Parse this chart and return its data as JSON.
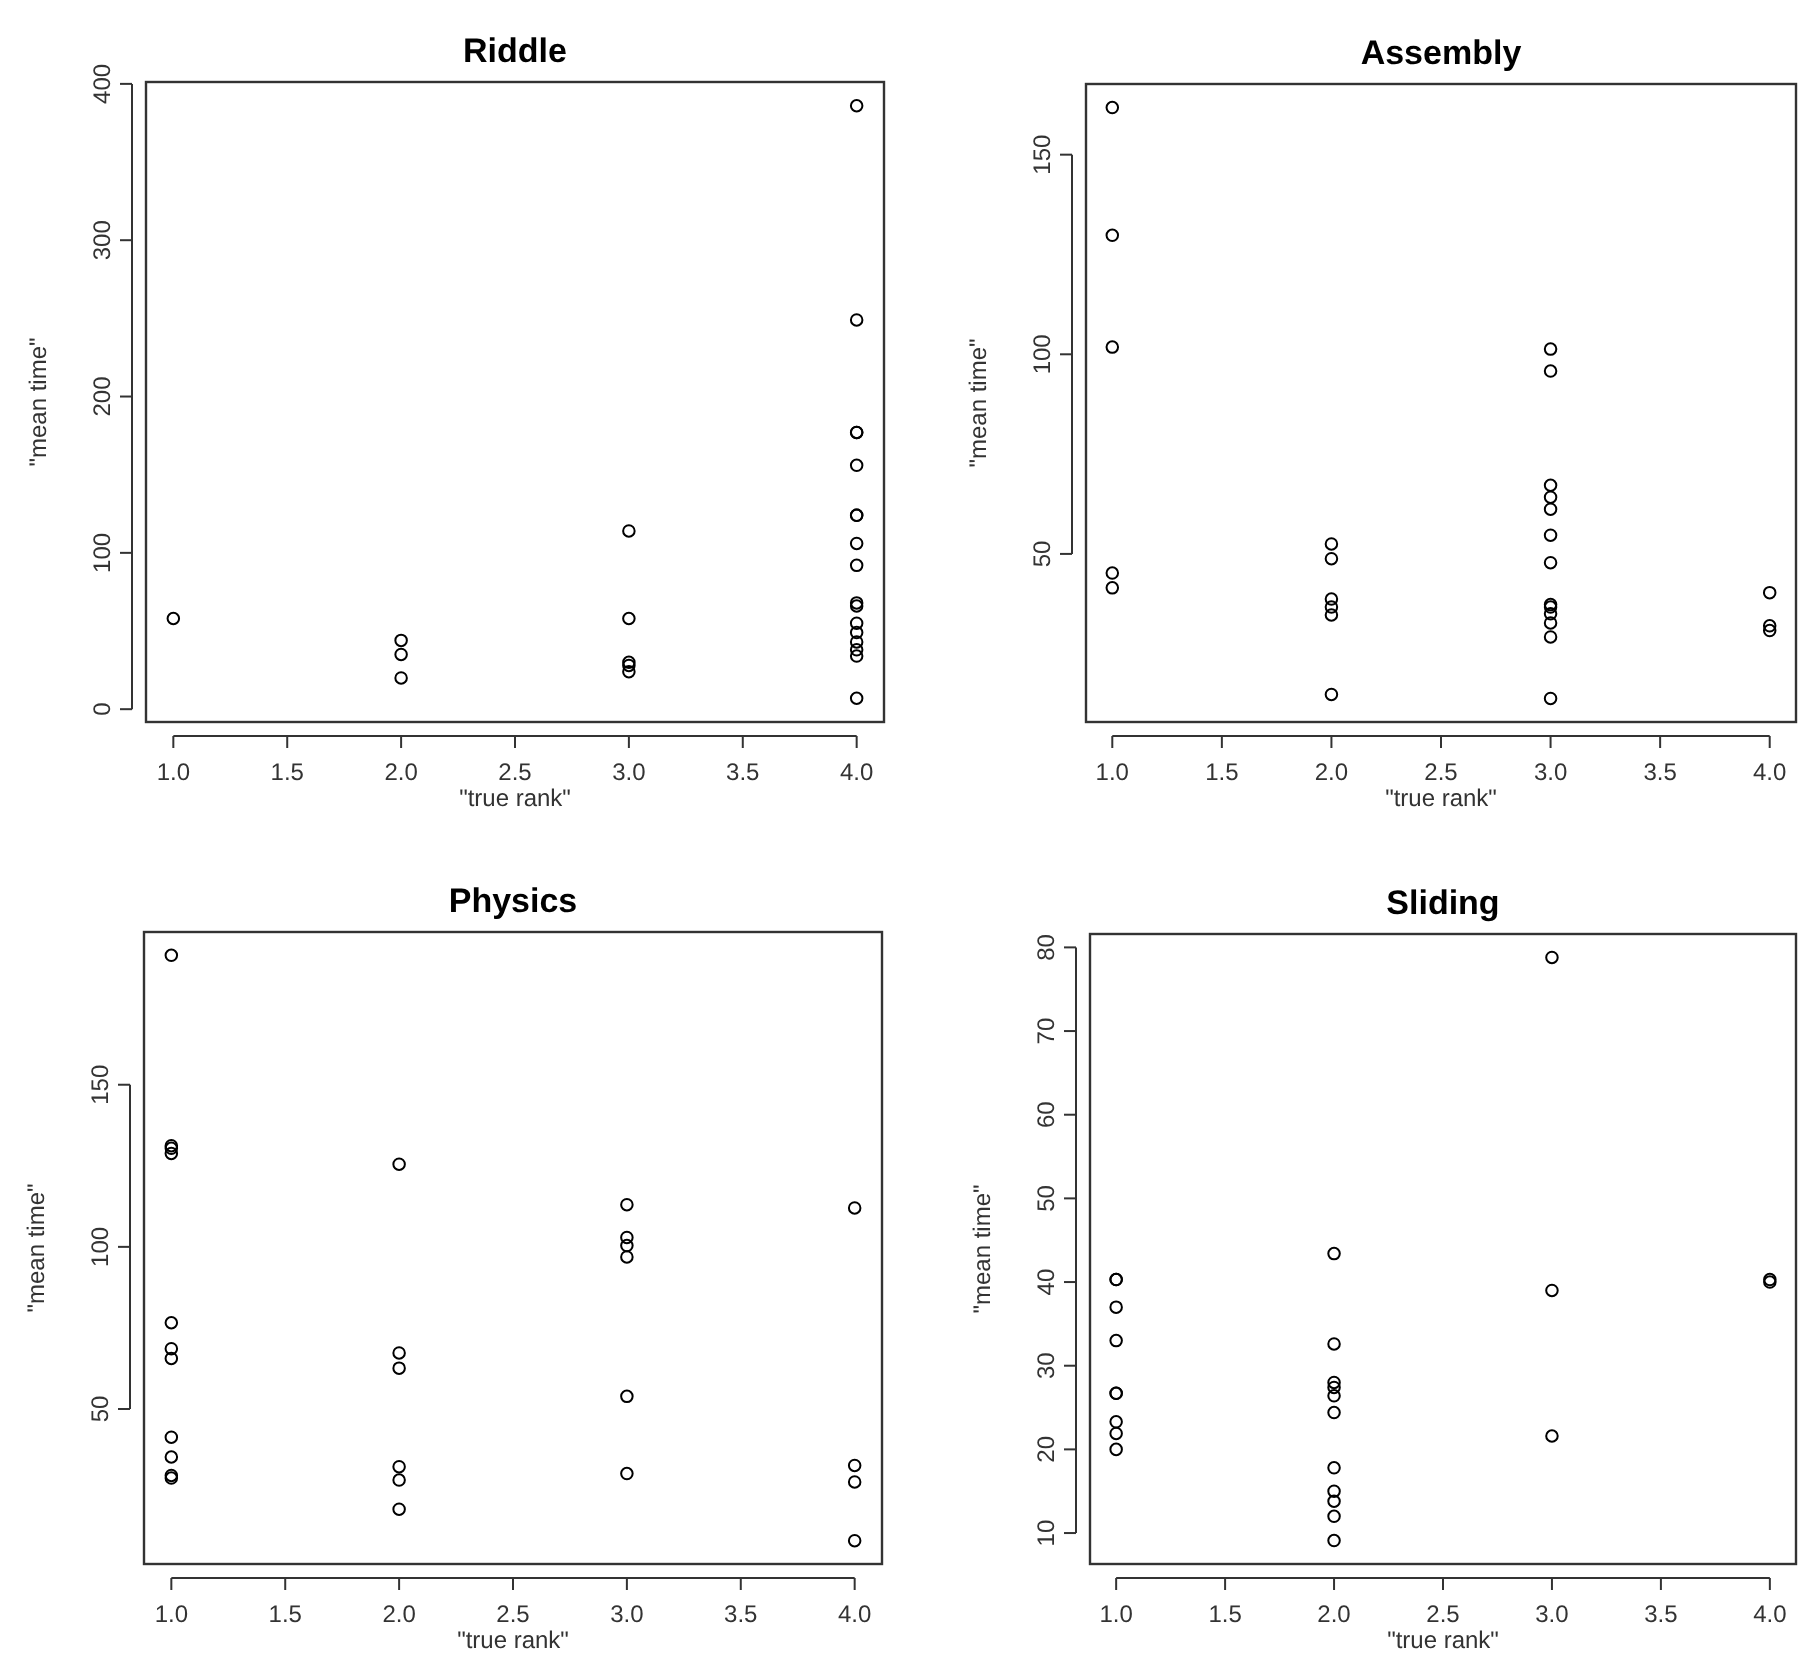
{
  "chart_data": [
    {
      "type": "scatter",
      "title": "Riddle",
      "xlabel": "\"true rank\"",
      "ylabel": "\"mean time\"",
      "marker": "circle",
      "color": "#000000",
      "grid": false,
      "x": [
        1,
        2,
        2,
        2,
        3,
        3,
        3,
        3,
        3,
        4,
        4,
        4,
        4,
        4,
        4,
        4,
        4,
        4,
        4,
        4,
        4,
        4,
        4,
        4,
        4,
        4
      ],
      "values": [
        58,
        44,
        35,
        20,
        114,
        58,
        30,
        28,
        24,
        386,
        249,
        177,
        177,
        156,
        124,
        124,
        106,
        92,
        68,
        66,
        55,
        49,
        43,
        38,
        34,
        7
      ],
      "xlim": [
        0.88,
        4.12
      ],
      "xticks": [
        {
          "value": 1,
          "label": "1.0"
        },
        {
          "value": 1.5,
          "label": "1.5"
        },
        {
          "value": 2,
          "label": "2.0"
        },
        {
          "value": 2.5,
          "label": "2.5"
        },
        {
          "value": 3,
          "label": "3.0"
        },
        {
          "value": 3.5,
          "label": "3.5"
        },
        {
          "value": 4,
          "label": "4.0"
        }
      ],
      "ylim": [
        -8.2,
        401.2
      ],
      "yticks": [
        0,
        100,
        200,
        300,
        400
      ]
    },
    {
      "type": "scatter",
      "title": "Assembly",
      "xlabel": "\"true rank\"",
      "ylabel": "\"mean time\"",
      "marker": "circle",
      "color": "#000000",
      "grid": false,
      "x": [
        1,
        1,
        1,
        1,
        1,
        2,
        2,
        2,
        2,
        2,
        2,
        3,
        3,
        3,
        3,
        3,
        3,
        3,
        3,
        3,
        3,
        3,
        3,
        3,
        4,
        4,
        4
      ],
      "values": [
        161.8,
        129.8,
        101.8,
        45.2,
        41.5,
        52.5,
        48.8,
        38.7,
        36.7,
        34.7,
        14.8,
        101.3,
        95.8,
        67.2,
        64.2,
        61.2,
        54.7,
        47.8,
        37.3,
        36.7,
        35,
        32.7,
        29.2,
        13.8,
        40.3,
        32,
        30.8
      ],
      "xlim": [
        0.88,
        4.12
      ],
      "xticks": [
        {
          "value": 1,
          "label": "1.0"
        },
        {
          "value": 1.5,
          "label": "1.5"
        },
        {
          "value": 2,
          "label": "2.0"
        },
        {
          "value": 2.5,
          "label": "2.5"
        },
        {
          "value": 3,
          "label": "3.0"
        },
        {
          "value": 3.5,
          "label": "3.5"
        },
        {
          "value": 4,
          "label": "4.0"
        }
      ],
      "ylim": [
        7.9,
        167.7
      ],
      "yticks": [
        50,
        100,
        150
      ]
    },
    {
      "type": "scatter",
      "title": "Physics",
      "xlabel": "\"true rank\"",
      "ylabel": "\"mean time\"",
      "marker": "circle",
      "color": "#000000",
      "grid": false,
      "x": [
        1,
        1,
        1,
        1,
        1,
        1,
        1,
        1,
        1,
        1,
        1,
        2,
        2,
        2,
        2,
        2,
        2,
        3,
        3,
        3,
        3,
        3,
        3,
        4,
        4,
        4,
        4
      ],
      "values": [
        189.9,
        131.2,
        130.4,
        128.8,
        76.6,
        68.6,
        65.6,
        41.3,
        35.2,
        29.5,
        28.7,
        125.5,
        67.3,
        62.6,
        32.2,
        28.1,
        19.1,
        113,
        102.9,
        100.4,
        96.9,
        53.9,
        30.1,
        112,
        32.6,
        27.5,
        9.4
      ],
      "xlim": [
        0.88,
        4.12
      ],
      "xticks": [
        {
          "value": 1,
          "label": "1.0"
        },
        {
          "value": 1.5,
          "label": "1.5"
        },
        {
          "value": 2,
          "label": "2.0"
        },
        {
          "value": 2.5,
          "label": "2.5"
        },
        {
          "value": 3,
          "label": "3.0"
        },
        {
          "value": 3.5,
          "label": "3.5"
        },
        {
          "value": 4,
          "label": "4.0"
        }
      ],
      "ylim": [
        2.2,
        197.1
      ],
      "yticks": [
        50,
        100,
        150
      ]
    },
    {
      "type": "scatter",
      "title": "Sliding",
      "xlabel": "\"true rank\"",
      "ylabel": "\"mean time\"",
      "marker": "circle",
      "color": "#000000",
      "grid": false,
      "x": [
        1,
        1,
        1,
        1,
        1,
        1,
        1,
        1,
        1,
        2,
        2,
        2,
        2,
        2,
        2,
        2,
        2,
        2,
        2,
        2,
        3,
        3,
        3,
        4,
        4
      ],
      "values": [
        40.3,
        40.3,
        37,
        33,
        26.7,
        26.7,
        23.3,
        21.9,
        20,
        43.4,
        32.6,
        28,
        27.4,
        26.4,
        24.4,
        17.8,
        15,
        13.8,
        12,
        9.1,
        78.8,
        39,
        21.6,
        40.3,
        40
      ],
      "xlim": [
        0.88,
        4.12
      ],
      "xticks": [
        {
          "value": 1,
          "label": "1.0"
        },
        {
          "value": 1.5,
          "label": "1.5"
        },
        {
          "value": 2,
          "label": "2.0"
        },
        {
          "value": 2.5,
          "label": "2.5"
        },
        {
          "value": 3,
          "label": "3.0"
        },
        {
          "value": 3.5,
          "label": "3.5"
        },
        {
          "value": 4,
          "label": "4.0"
        }
      ],
      "ylim": [
        6.3,
        81.6
      ],
      "yticks": [
        10,
        20,
        30,
        40,
        50,
        60,
        70,
        80
      ]
    }
  ]
}
